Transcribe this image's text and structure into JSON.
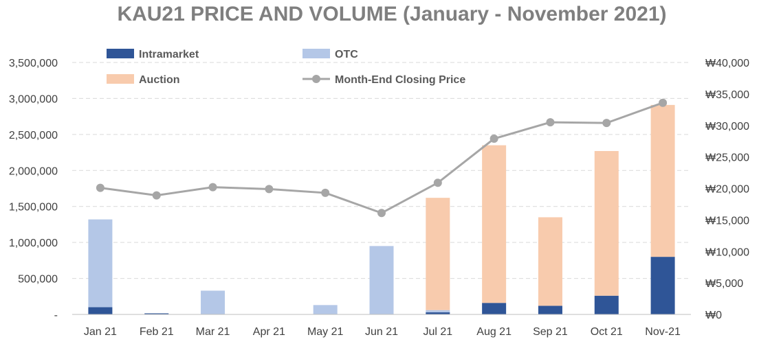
{
  "chart_data": {
    "type": "bar",
    "subtype": "stacked bar with line on secondary axis",
    "title": "KAU21 PRICE AND VOLUME (January - November 2021)",
    "categories": [
      "Jan 21",
      "Feb 21",
      "Mar 21",
      "Apr 21",
      "May 21",
      "Jun 21",
      "Jul 21",
      "Aug 21",
      "Sep 21",
      "Oct 21",
      "Nov-21"
    ],
    "series": [
      {
        "name": "Intramarket",
        "type": "bar",
        "color": "#2f5597",
        "values": [
          100000,
          15000,
          0,
          0,
          0,
          0,
          30000,
          160000,
          120000,
          260000,
          800000
        ]
      },
      {
        "name": "OTC",
        "type": "bar",
        "color": "#b4c7e7",
        "values": [
          1220000,
          0,
          330000,
          0,
          130000,
          950000,
          30000,
          0,
          0,
          0,
          0
        ]
      },
      {
        "name": "Auction",
        "type": "bar",
        "color": "#f8cbad",
        "values": [
          0,
          0,
          0,
          0,
          0,
          0,
          1560000,
          2190000,
          1230000,
          2010000,
          2110000
        ]
      },
      {
        "name": "Month-End Closing Price",
        "type": "line",
        "axis": "right",
        "color": "#a6a6a6",
        "values": [
          20100,
          18900,
          20200,
          19900,
          19300,
          16100,
          20900,
          27900,
          30500,
          30400,
          33600
        ]
      }
    ],
    "y_left": {
      "range": [
        0,
        3500000
      ],
      "step": 500000,
      "tick_labels": [
        "-",
        "500,000",
        "1,000,000",
        "1,500,000",
        "2,000,000",
        "2,500,000",
        "3,000,000",
        "3,500,000"
      ]
    },
    "y_right": {
      "range": [
        0,
        40000
      ],
      "step": 5000,
      "tick_labels": [
        "₩0",
        "₩5,000",
        "₩10,000",
        "₩15,000",
        "₩20,000",
        "₩25,000",
        "₩30,000",
        "₩35,000",
        "₩40,000"
      ]
    },
    "grid": true,
    "legend": "top-left"
  }
}
